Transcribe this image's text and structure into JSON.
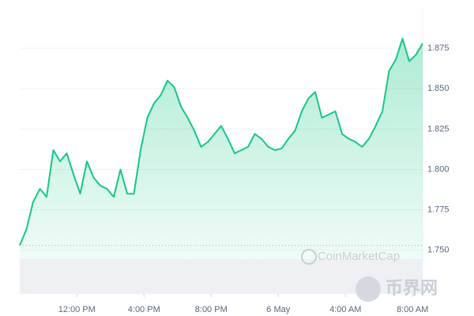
{
  "chart_data": {
    "type": "area",
    "x": [
      8.6,
      9.0,
      9.4,
      9.8,
      10.2,
      10.6,
      11.0,
      11.4,
      11.8,
      12.2,
      12.6,
      13.0,
      13.4,
      13.8,
      14.2,
      14.6,
      15.0,
      15.4,
      15.8,
      16.2,
      16.6,
      17.0,
      17.4,
      17.8,
      18.2,
      18.6,
      19.0,
      19.4,
      19.8,
      20.2,
      20.6,
      21.0,
      21.4,
      21.8,
      22.2,
      22.6,
      23.0,
      23.4,
      23.8,
      24.2,
      24.6,
      25.0,
      25.4,
      25.8,
      26.2,
      26.6,
      27.0,
      27.4,
      27.8,
      28.2,
      28.6,
      29.0,
      29.4,
      29.8,
      30.2,
      30.6,
      31.0,
      31.4,
      31.8,
      32.2,
      32.6
    ],
    "series": [
      {
        "color": "#16c784",
        "values": [
          1.753,
          1.763,
          1.78,
          1.788,
          1.783,
          1.812,
          1.805,
          1.81,
          1.797,
          1.785,
          1.805,
          1.795,
          1.79,
          1.788,
          1.783,
          1.8,
          1.785,
          1.785,
          1.812,
          1.832,
          1.841,
          1.846,
          1.855,
          1.851,
          1.839,
          1.832,
          1.824,
          1.814,
          1.817,
          1.822,
          1.827,
          1.819,
          1.81,
          1.812,
          1.814,
          1.822,
          1.819,
          1.814,
          1.812,
          1.813,
          1.819,
          1.824,
          1.836,
          1.844,
          1.848,
          1.832,
          1.834,
          1.836,
          1.822,
          1.819,
          1.817,
          1.814,
          1.819,
          1.827,
          1.836,
          1.861,
          1.868,
          1.881,
          1.867,
          1.871,
          1.878
        ]
      }
    ],
    "baseline": 1.753,
    "xlim": [
      8.6,
      32.6
    ],
    "xticks": [
      {
        "value": 12,
        "label": "12:00 PM"
      },
      {
        "value": 16,
        "label": "4:00 PM"
      },
      {
        "value": 20,
        "label": "8:00 PM"
      },
      {
        "value": 24,
        "label": "6 May"
      },
      {
        "value": 28,
        "label": "4:00 AM"
      },
      {
        "value": 32,
        "label": "8:00 AM"
      }
    ],
    "ylim": [
      1.723,
      1.9
    ],
    "yticks": [
      {
        "value": 1.75,
        "label": "1.750"
      },
      1.775,
      {
        "value": 1.8,
        "label": "1.800"
      },
      1.825,
      {
        "value": 1.85,
        "label": "1.850"
      },
      1.875
    ],
    "grid": true,
    "watermarks": [
      "CoinMarketCap",
      "币界网"
    ]
  }
}
